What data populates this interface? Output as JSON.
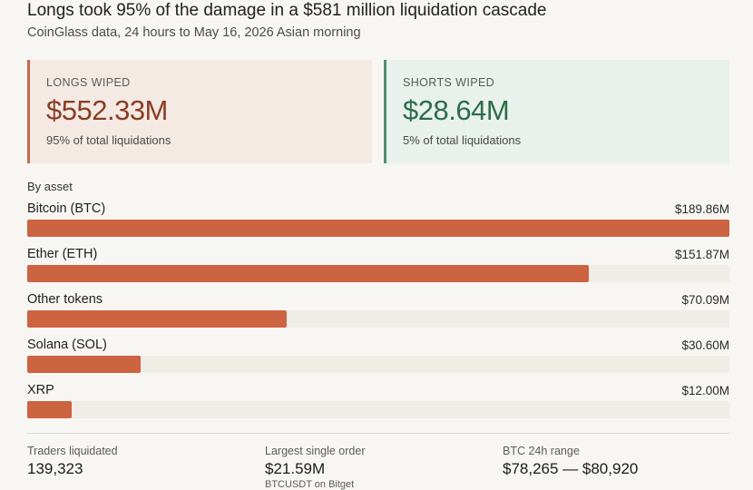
{
  "header": {
    "title": "Longs took 95% of the damage in a $581 million liquidation cascade",
    "subtitle": "CoinGlass data, 24 hours to May 16, 2026 Asian morning"
  },
  "cards": {
    "longs": {
      "label": "LONGS WIPED",
      "value": "$552.33M",
      "note": "95% of total liquidations",
      "accent": "#c9694a"
    },
    "shorts": {
      "label": "SHORTS WIPED",
      "value": "$28.64M",
      "note": "5% of total liquidations",
      "accent": "#4f8f6d"
    }
  },
  "chart_data": {
    "type": "bar",
    "title": "By asset",
    "categories": [
      "Bitcoin (BTC)",
      "Ether (ETH)",
      "Other tokens",
      "Solana (SOL)",
      "XRP"
    ],
    "values": [
      189.86,
      151.87,
      70.09,
      30.6,
      12.0
    ],
    "value_labels": [
      "$189.86M",
      "$151.87M",
      "$70.09M",
      "$30.60M",
      "$12.00M"
    ],
    "unit": "USD millions",
    "orientation": "horizontal",
    "grid": false,
    "bar_color": "#cc6341"
  },
  "stats": [
    {
      "label": "Traders liquidated",
      "value": "139,323",
      "sub": ""
    },
    {
      "label": "Largest single order",
      "value": "$21.59M",
      "sub": "BTCUSDT on Bitget"
    },
    {
      "label": "BTC 24h range",
      "value": "$78,265 — $80,920",
      "sub": ""
    }
  ]
}
